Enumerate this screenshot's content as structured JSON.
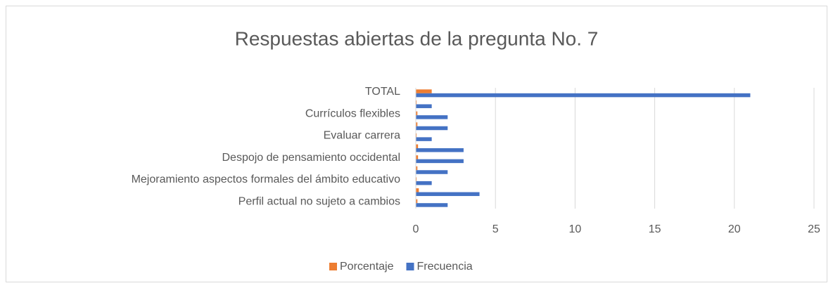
{
  "chart_data": {
    "type": "bar",
    "orientation": "horizontal",
    "title": "Respuestas abiertas de la pregunta No. 7",
    "categories": [
      "TOTAL",
      null,
      "Currículos flexibles",
      null,
      "Evaluar carrera ",
      null,
      "Despojo de pensamiento occidental",
      null,
      "Mejoramiento aspectos formales del ámbito educativo ",
      null,
      "Perfil actual no sujeto a cambios "
    ],
    "series": [
      {
        "name": "Porcentaje",
        "color": "#ed7d31",
        "values": [
          1,
          0.05,
          0.1,
          0.1,
          0.05,
          0.14,
          0.14,
          0.1,
          0.05,
          0.19,
          0.1
        ]
      },
      {
        "name": "Frecuencia",
        "color": "#4472c4",
        "values": [
          21,
          1,
          2,
          2,
          1,
          3,
          3,
          2,
          1,
          4,
          2
        ]
      }
    ],
    "xlim": [
      0,
      25
    ],
    "xticks": [
      0,
      5,
      10,
      15,
      20,
      25
    ],
    "grid": true,
    "legend": "bottom"
  }
}
